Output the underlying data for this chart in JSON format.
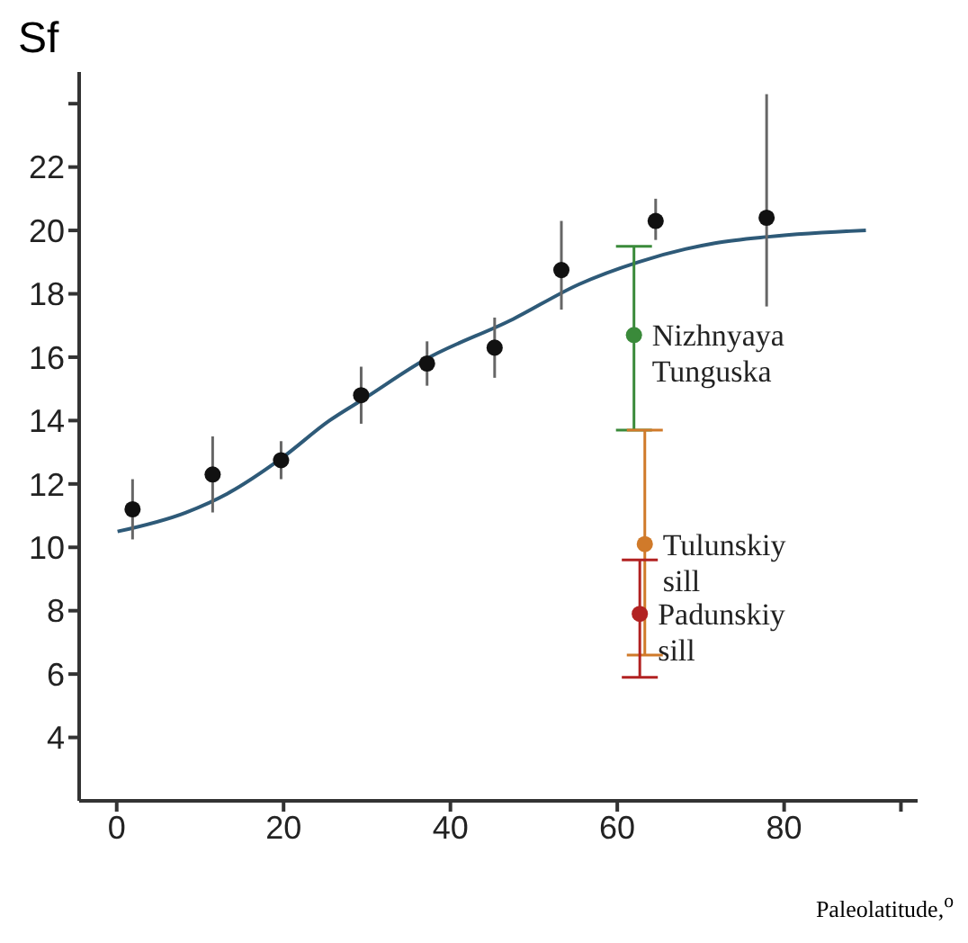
{
  "chart_data": {
    "type": "scatter",
    "ylabel": "Sf",
    "xlabel": "Paleolatitude,$^{o}$",
    "xlim": [
      -4.5,
      96
    ],
    "xticks": [
      0,
      20,
      40,
      60,
      80,
      {
        "value": 94,
        "label": null
      }
    ],
    "ylim": [
      2,
      25
    ],
    "yticks": [
      4,
      6,
      8,
      10,
      12,
      14,
      16,
      18,
      20,
      22,
      {
        "value": 24,
        "label": null
      }
    ],
    "grid": false,
    "legend": false,
    "marker": "circle",
    "series": [
      {
        "type": "line",
        "marker": "none",
        "color": "#2e5a78",
        "x": [
          0.1,
          8.3,
          13.3,
          19.7,
          25.5,
          29.7,
          36.8,
          47.5,
          55.4,
          62.5,
          71.7,
          78.1,
          89.8
        ],
        "values": [
          10.5,
          11.1,
          11.7,
          12.8,
          14.0,
          14.7,
          15.9,
          17.2,
          18.3,
          19.0,
          19.6,
          19.8,
          20.0
        ]
      },
      {
        "color": "#111111",
        "x": [
          1.9,
          11.5,
          19.7,
          29.3,
          37.2,
          45.3,
          53.3,
          64.6,
          77.9
        ],
        "values": [
          11.2,
          12.3,
          12.75,
          14.8,
          15.8,
          16.3,
          18.75,
          20.3,
          20.4
        ],
        "errors": [
          0.95,
          1.2,
          0.6,
          0.9,
          0.7,
          0.95,
          [
            17.5,
            20.3
          ],
          [
            19.7,
            21.0
          ],
          [
            17.6,
            24.3
          ]
        ]
      },
      {
        "name": "Nizhnyaya Tunguska",
        "color": "#3a8a3a",
        "x": [
          62.0
        ],
        "values": [
          16.7
        ],
        "errors": [
          [
            13.7,
            19.5
          ]
        ]
      },
      {
        "name": "Tulunskiy sill",
        "color": "#d07a2a",
        "x": [
          63.3
        ],
        "values": [
          10.1
        ],
        "errors": [
          [
            6.6,
            13.7
          ]
        ]
      },
      {
        "name": "Padunskiy sill",
        "color": "#b22222",
        "x": [
          62.7
        ],
        "values": [
          7.9
        ],
        "errors": [
          [
            5.9,
            9.6
          ]
        ]
      }
    ]
  }
}
